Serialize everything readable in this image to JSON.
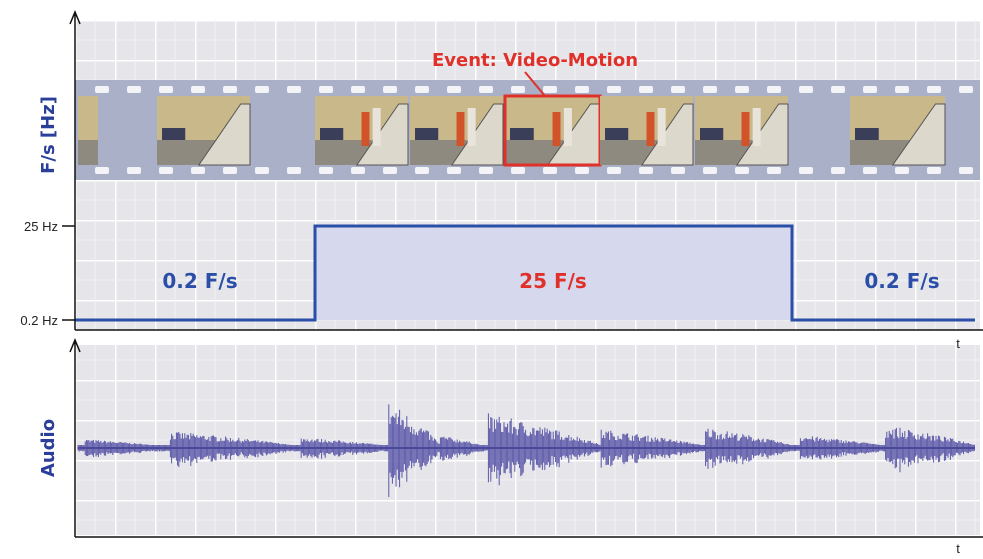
{
  "axis_label_top": "F/s [Hz]",
  "axis_label_bottom": "Audio",
  "event_label": "Event: Video-Motion",
  "y_labels": [
    "25 Hz",
    "0.2 Hz"
  ],
  "rate_labels": [
    "0.2 F/s",
    "25 F/s",
    "0.2 F/s"
  ],
  "time_labels": [
    "t",
    "t"
  ]
}
